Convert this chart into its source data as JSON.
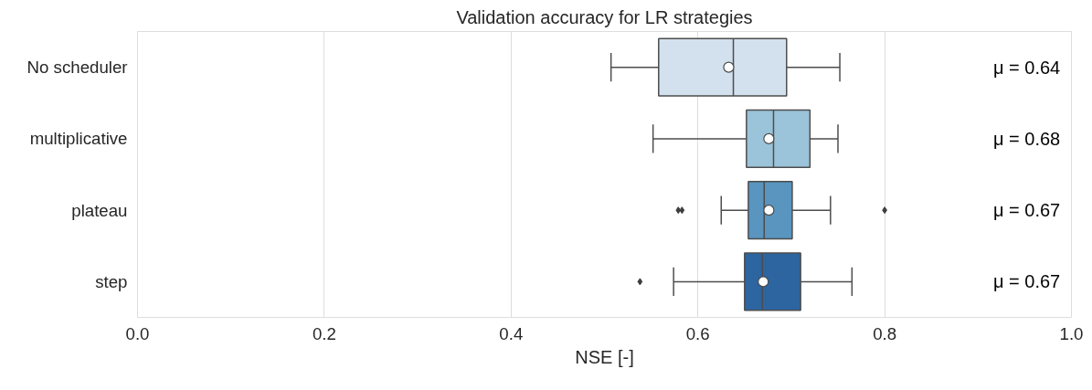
{
  "chart_data": {
    "type": "box",
    "orientation": "horizontal",
    "title": "Validation accuracy for LR strategies",
    "xlabel": "NSE [-]",
    "categories": [
      "No scheduler",
      "multiplicative",
      "plateau",
      "step"
    ],
    "colors": [
      "#d3e1ef",
      "#9bc3d9",
      "#5995bf",
      "#2c65a0"
    ],
    "boxes": [
      {
        "low": 0.507,
        "q1": 0.558,
        "median": 0.638,
        "q3": 0.695,
        "high": 0.752,
        "mean": 0.633
      },
      {
        "low": 0.552,
        "q1": 0.652,
        "median": 0.681,
        "q3": 0.72,
        "high": 0.75,
        "mean": 0.676
      },
      {
        "low": 0.625,
        "q1": 0.654,
        "median": 0.671,
        "q3": 0.701,
        "high": 0.742,
        "mean": 0.676,
        "outliers": [
          0.579,
          0.583,
          0.8
        ]
      },
      {
        "low": 0.574,
        "q1": 0.65,
        "median": 0.669,
        "q3": 0.71,
        "high": 0.765,
        "mean": 0.67,
        "outliers": [
          0.538
        ]
      }
    ],
    "xlim": [
      0,
      1
    ],
    "xticks": [
      {
        "value": 0,
        "label": "0.0"
      },
      0.2,
      0.4,
      0.6,
      0.8,
      {
        "value": 1,
        "label": "1.0"
      }
    ],
    "grid": "x",
    "annotations": [
      "μ = 0.64",
      "μ = 0.68",
      "μ = 0.67",
      "μ = 0.67"
    ]
  }
}
